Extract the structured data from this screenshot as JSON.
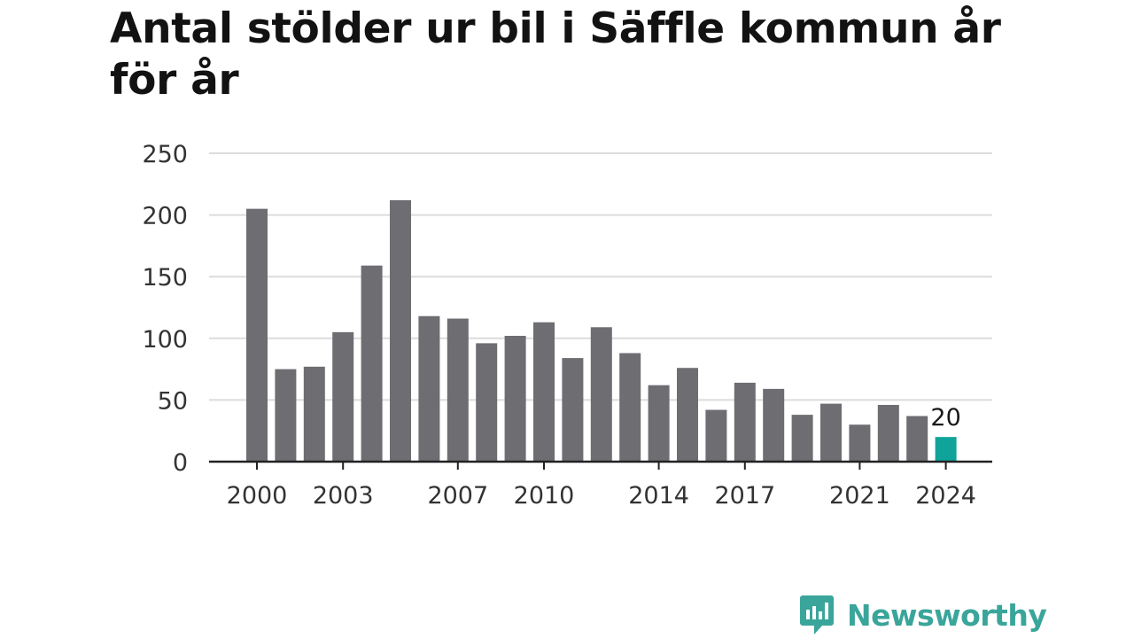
{
  "title": "Antal stölder ur bil i Säffle kommun år för år",
  "brand": {
    "name": "Newsworthy",
    "color": "#3aa59a"
  },
  "colors": {
    "bar": "#6e6d72",
    "highlight": "#0fa39a",
    "grid": "#dcdcdc",
    "axis": "#222222"
  },
  "chart_data": {
    "type": "bar",
    "title": "Antal stölder ur bil i Säffle kommun år för år",
    "xlabel": "",
    "ylabel": "",
    "ylim": [
      0,
      250
    ],
    "yticks": [
      0,
      50,
      100,
      150,
      200,
      250
    ],
    "xticks": [
      "2000",
      "2003",
      "2007",
      "2010",
      "2014",
      "2017",
      "2021",
      "2024"
    ],
    "grid": true,
    "categories": [
      "2000",
      "2001",
      "2002",
      "2003",
      "2004",
      "2005",
      "2006",
      "2007",
      "2008",
      "2009",
      "2010",
      "2011",
      "2012",
      "2013",
      "2014",
      "2015",
      "2016",
      "2017",
      "2018",
      "2019",
      "2020",
      "2021",
      "2022",
      "2023",
      "2024"
    ],
    "values": [
      205,
      75,
      77,
      105,
      159,
      212,
      118,
      116,
      96,
      102,
      113,
      84,
      109,
      88,
      62,
      76,
      42,
      64,
      59,
      38,
      47,
      30,
      46,
      37,
      20
    ],
    "highlight": {
      "category": "2024",
      "label": "20"
    }
  }
}
